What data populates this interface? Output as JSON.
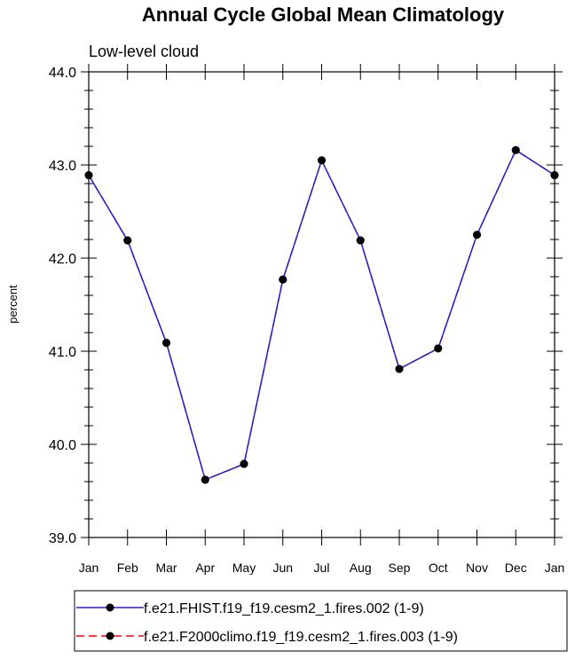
{
  "chart_data": {
    "type": "line",
    "title": "Annual Cycle Global Mean Climatology",
    "subtitle": "Low-level cloud",
    "ylabel": "percent",
    "xlabel": "",
    "categories": [
      "Jan",
      "Feb",
      "Mar",
      "Apr",
      "May",
      "Jun",
      "Jul",
      "Aug",
      "Sep",
      "Oct",
      "Nov",
      "Dec",
      "Jan"
    ],
    "ylim": [
      39.0,
      44.0
    ],
    "yticks": [
      "39.0",
      "40.0",
      "41.0",
      "42.0",
      "43.0",
      "44.0"
    ],
    "grid": false,
    "legend_position": "bottom",
    "series": [
      {
        "name": "f.e21.FHIST.f19_f19.cesm2_1.fires.002 (1-9)",
        "color": "#2222cc",
        "dash": "solid",
        "values": [
          42.89,
          42.19,
          41.09,
          39.62,
          39.79,
          41.77,
          43.05,
          42.19,
          40.81,
          41.03,
          42.25,
          43.16,
          42.89
        ]
      },
      {
        "name": "f.e21.F2000climo.f19_f19.cesm2_1.fires.003 (1-9)",
        "color": "#ff0000",
        "dash": "dashed",
        "values": [
          42.89,
          42.19,
          41.09,
          39.62,
          39.79,
          41.77,
          43.05,
          42.19,
          40.81,
          41.03,
          42.25,
          43.16,
          42.89
        ]
      }
    ]
  }
}
